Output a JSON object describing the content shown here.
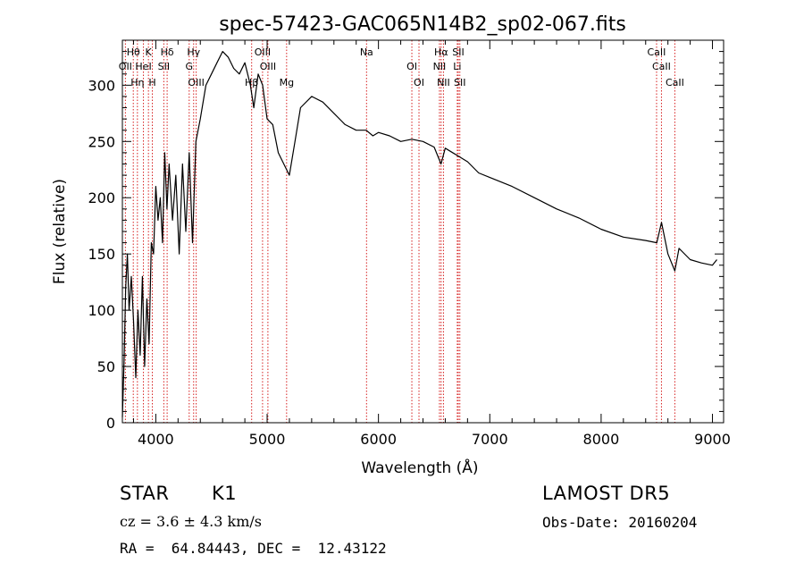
{
  "chart_data": {
    "type": "line",
    "title": "spec-57423-GAC065N14B2_sp02-067.fits",
    "xlabel": "Wavelength (Å)",
    "ylabel": "Flux (relative)",
    "xlim": [
      3700,
      9100
    ],
    "ylim": [
      0,
      340
    ],
    "xticks": [
      4000,
      5000,
      6000,
      7000,
      8000,
      9000
    ],
    "yticks": [
      0,
      50,
      100,
      150,
      200,
      250,
      300
    ],
    "grid": false,
    "line_color": "#000000",
    "marker_color": "#d62020",
    "series": [
      {
        "x": [
          3700,
          3715,
          3730,
          3745,
          3760,
          3780,
          3800,
          3820,
          3840,
          3860,
          3880,
          3900,
          3920,
          3940,
          3960,
          3980,
          4000,
          4020,
          4040,
          4060,
          4080,
          4100,
          4120,
          4150,
          4180,
          4210,
          4240,
          4270,
          4300,
          4330,
          4360,
          4400,
          4450,
          4500,
          4550,
          4600,
          4650,
          4700,
          4750,
          4800,
          4850,
          4880,
          4920,
          4960,
          5000,
          5050,
          5100,
          5150,
          5200,
          5250,
          5300,
          5400,
          5500,
          5600,
          5700,
          5800,
          5890,
          5950,
          6000,
          6100,
          6200,
          6300,
          6400,
          6500,
          6562,
          6600,
          6700,
          6800,
          6900,
          7000,
          7200,
          7400,
          7600,
          7800,
          8000,
          8200,
          8400,
          8500,
          8542,
          8600,
          8662,
          8700,
          8800,
          8900,
          9000,
          9040
        ],
        "y": [
          5,
          55,
          120,
          150,
          100,
          130,
          90,
          40,
          100,
          60,
          130,
          50,
          110,
          70,
          160,
          150,
          210,
          180,
          200,
          160,
          240,
          190,
          230,
          180,
          220,
          150,
          230,
          170,
          240,
          160,
          250,
          270,
          300,
          310,
          320,
          330,
          325,
          315,
          310,
          320,
          300,
          280,
          310,
          300,
          270,
          265,
          240,
          230,
          220,
          250,
          280,
          290,
          285,
          275,
          265,
          260,
          260,
          255,
          258,
          255,
          250,
          252,
          250,
          245,
          230,
          244,
          238,
          232,
          222,
          218,
          210,
          200,
          190,
          182,
          172,
          165,
          162,
          160,
          178,
          150,
          135,
          155,
          145,
          142,
          140,
          145
        ]
      }
    ],
    "line_markers": [
      {
        "label": "Hθ",
        "wavelength": 3798
      },
      {
        "label": "OII",
        "wavelength": 3727
      },
      {
        "label": "Hη",
        "wavelength": 3835
      },
      {
        "label": "K",
        "wavelength": 3934
      },
      {
        "label": "HeI",
        "wavelength": 3889
      },
      {
        "label": "H",
        "wavelength": 3969
      },
      {
        "label": "Hδ",
        "wavelength": 4102
      },
      {
        "label": "SII",
        "wavelength": 4072
      },
      {
        "label": "OIII",
        "wavelength": 4363
      },
      {
        "label": "Hγ",
        "wavelength": 4340
      },
      {
        "label": "G",
        "wavelength": 4300
      },
      {
        "label": "Hβ",
        "wavelength": 4861
      },
      {
        "label": "OIII",
        "wavelength": 4959
      },
      {
        "label": "OIII",
        "wavelength": 5007
      },
      {
        "label": "Mg",
        "wavelength": 5175
      },
      {
        "label": "Na",
        "wavelength": 5893
      },
      {
        "label": "OI",
        "wavelength": 6300
      },
      {
        "label": "OI",
        "wavelength": 6364
      },
      {
        "label": "Hα",
        "wavelength": 6563
      },
      {
        "label": "NII",
        "wavelength": 6548
      },
      {
        "label": "NII",
        "wavelength": 6584
      },
      {
        "label": "SII",
        "wavelength": 6717
      },
      {
        "label": "Li",
        "wavelength": 6708
      },
      {
        "label": "SII",
        "wavelength": 6731
      },
      {
        "label": "CaII",
        "wavelength": 8498
      },
      {
        "label": "CaII",
        "wavelength": 8542
      },
      {
        "label": "CaII",
        "wavelength": 8662
      }
    ]
  },
  "info": {
    "class": "STAR",
    "subclass": "K1",
    "survey": "LAMOST DR5",
    "cz": "cz = 3.6 ± 4.3 km/s",
    "obs_date": "Obs-Date: 20160204",
    "radec": "RA =  64.84443, DEC =  12.43122"
  }
}
